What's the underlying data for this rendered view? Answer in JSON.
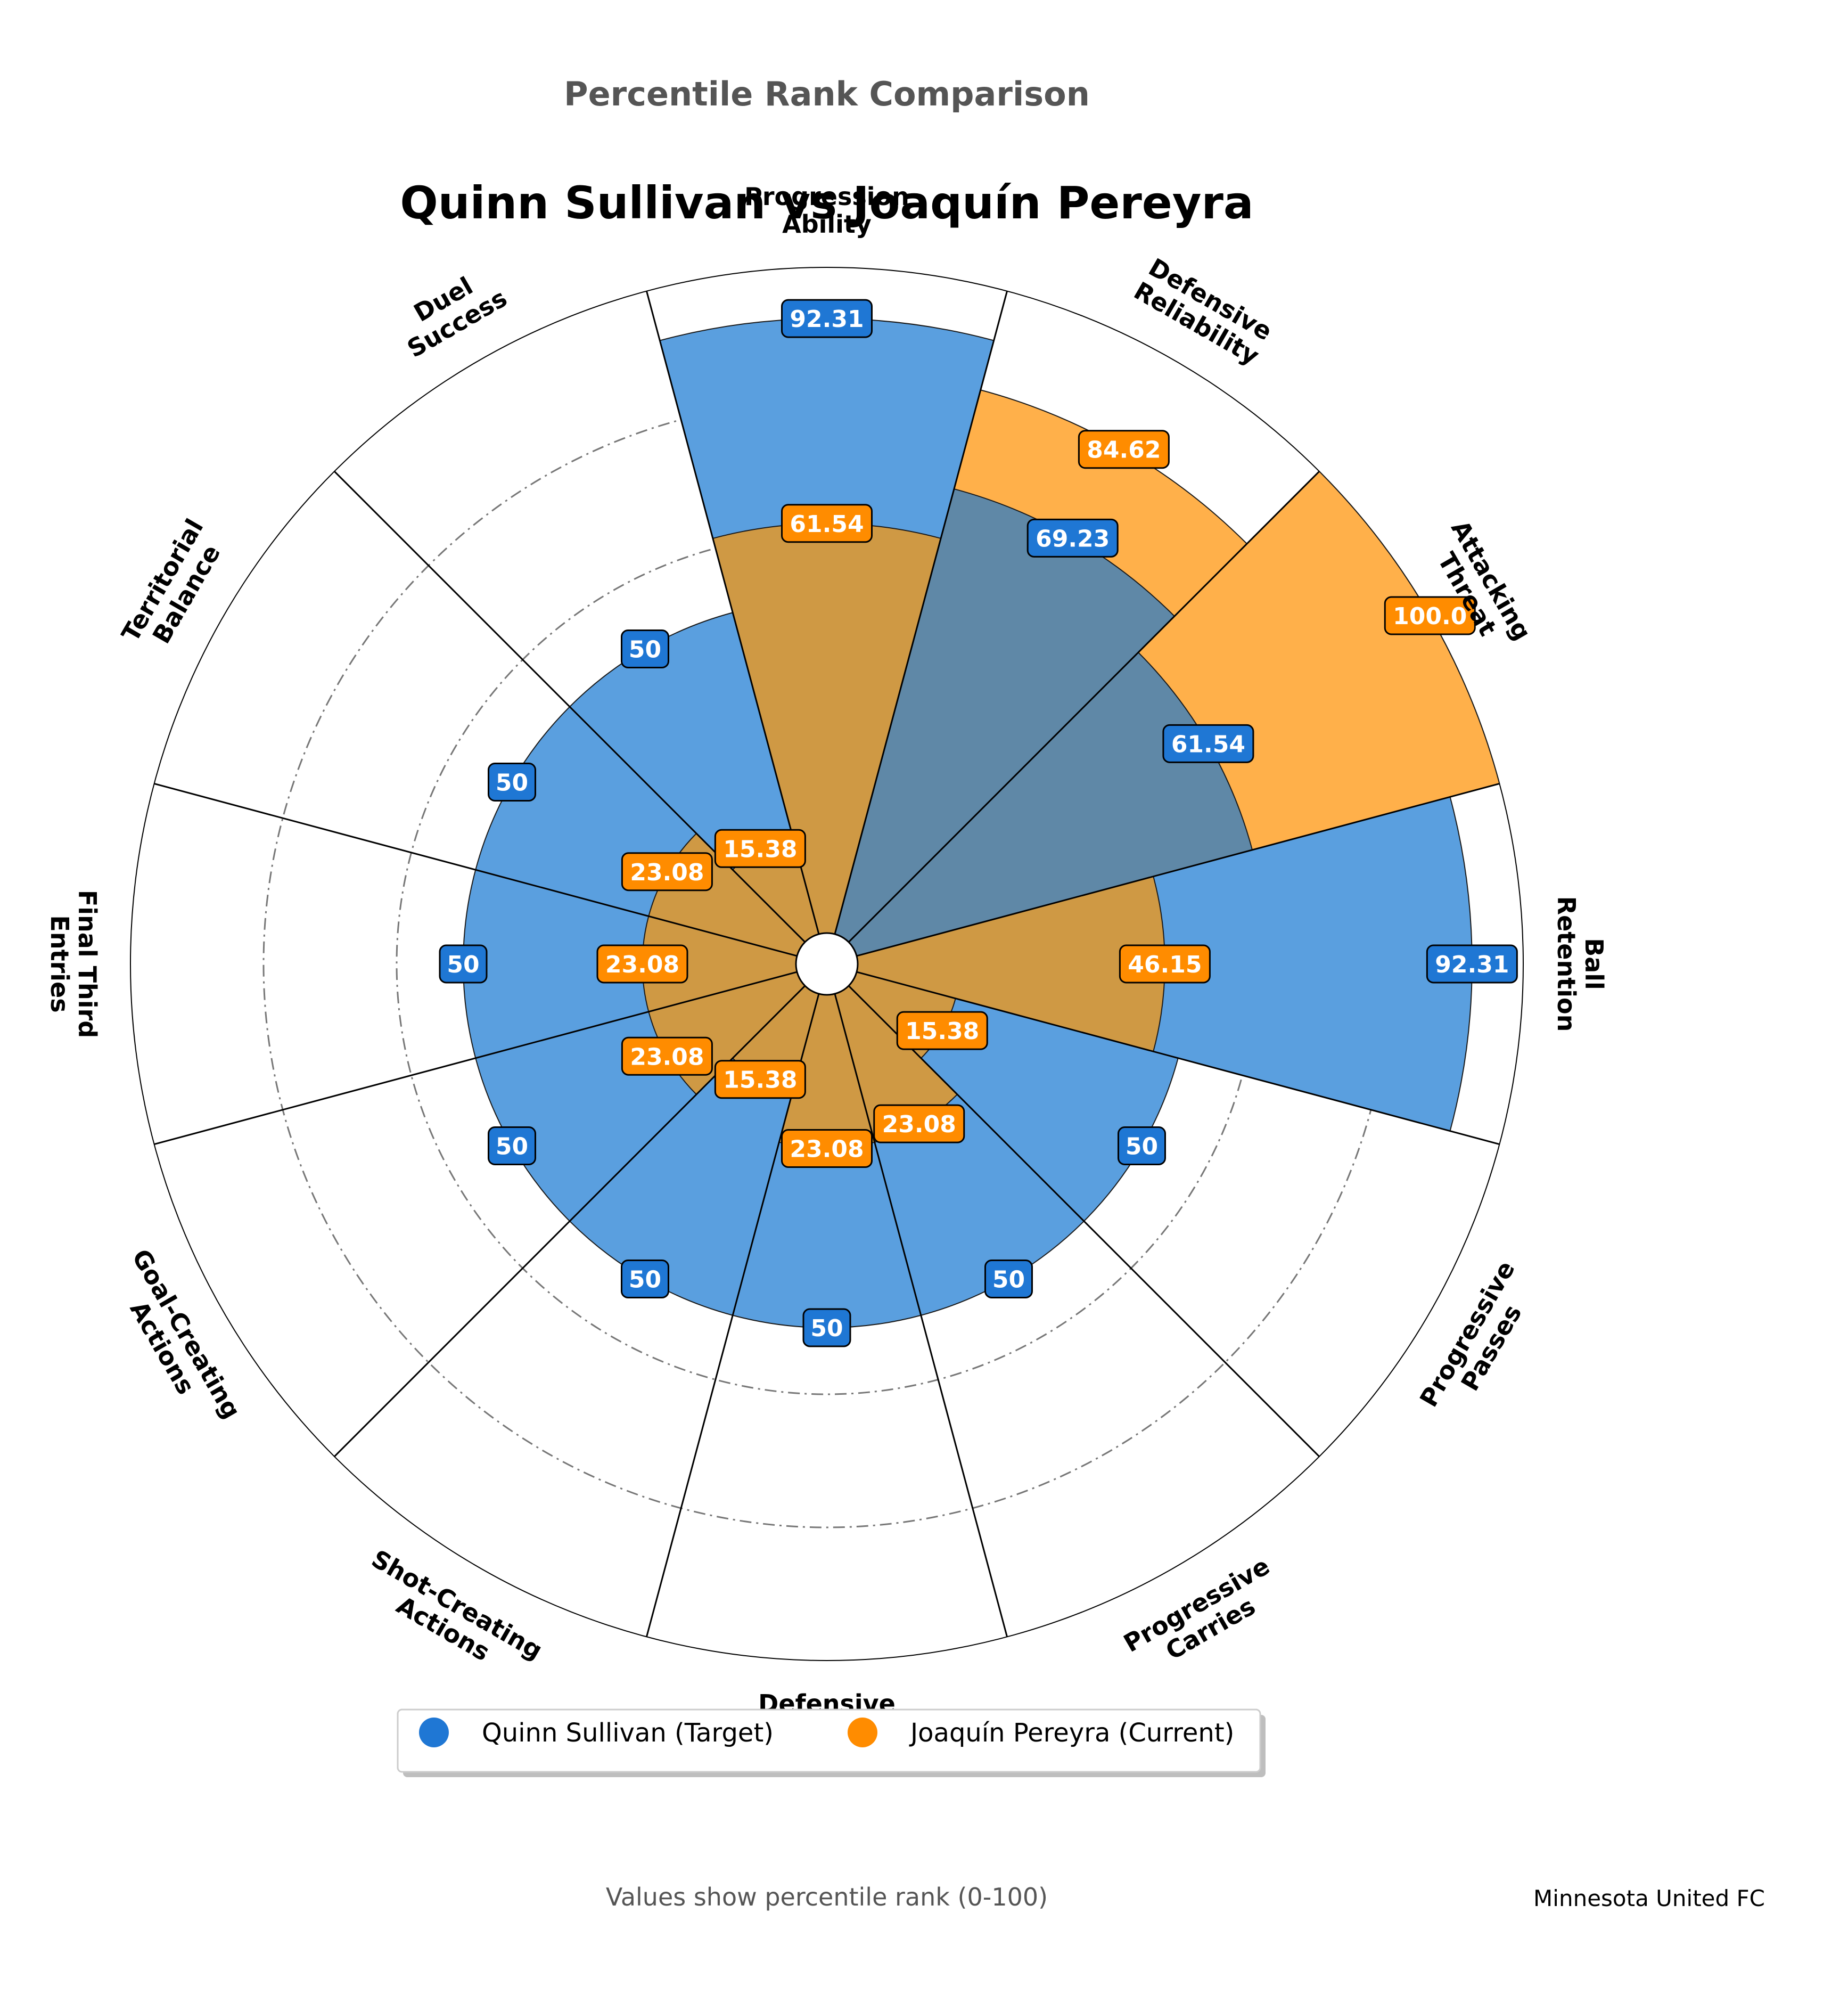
{
  "title": "Percentile Rank Comparison",
  "subtitle": "Quinn Sullivan vs Joaquín Pereyra",
  "footnote": "Values show percentile rank (0-100)",
  "team": "Minnesota United FC",
  "colors": {
    "target": "#1f77d4",
    "current": "#ff8c00",
    "target_fill": "#5a9fdf",
    "current_fill": "#ffb04a",
    "overlap_fill": "#5f88a7",
    "current_on_target_fill": "#cf9944"
  },
  "chart_data": {
    "type": "polar-bar",
    "categories": [
      "Ball\nRetention",
      "Attacking\nThreat",
      "Defensive\nReliability",
      "Progression\nAbility",
      "Duel\nSuccess",
      "Territorial\nBalance",
      "Final Third\nEntries",
      "Goal-Creating\nActions",
      "Shot-Creating\nActions",
      "Defensive\nActions",
      "Progressive\nCarries",
      "Progressive\nPasses"
    ],
    "series": [
      {
        "name": "Quinn Sullivan (Target)",
        "values": [
          92.31,
          61.54,
          69.23,
          92.31,
          50,
          50,
          50,
          50,
          50,
          50,
          50,
          50
        ]
      },
      {
        "name": "Joaquín Pereyra (Current)",
        "values": [
          46.15,
          100.0,
          84.62,
          61.54,
          15.38,
          23.08,
          23.08,
          23.08,
          15.38,
          23.08,
          23.08,
          15.38
        ]
      }
    ],
    "value_labels": {
      "target": [
        "92.31",
        "61.54",
        "69.23",
        "92.31",
        "50",
        "50",
        "50",
        "50",
        "50",
        "50",
        "50",
        "50"
      ],
      "current": [
        "46.15",
        "100.0",
        "84.62",
        "61.54",
        "15.38",
        "23.08",
        "23.08",
        "23.08",
        "15.38",
        "23.08",
        "23.08",
        "15.38"
      ]
    },
    "rlim": [
      0,
      100
    ],
    "grid": true,
    "legend_position": "bottom"
  }
}
